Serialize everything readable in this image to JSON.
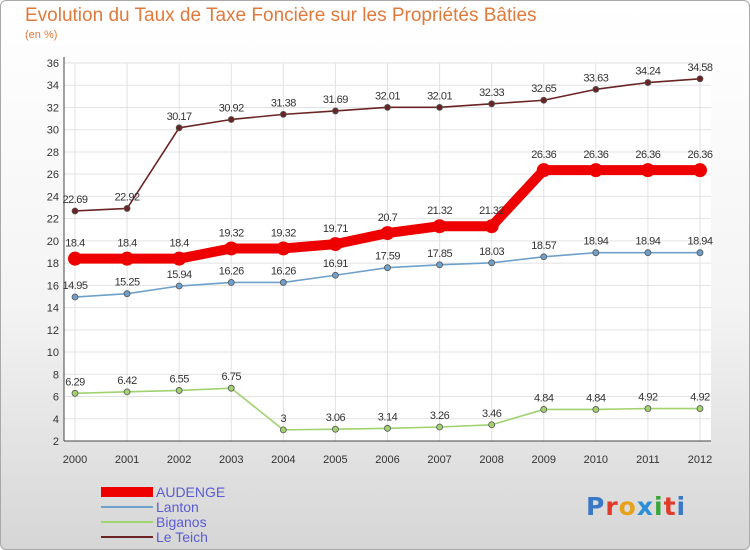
{
  "title": "Evolution du Taux de Taxe Foncière sur les Propriétés Bâties",
  "subtitle": "(en %)",
  "brand": {
    "text": "Proxiti",
    "colors": [
      "#3a78c8",
      "#e03b2a",
      "#e6a21a",
      "#2a8fd6",
      "#3aa63a",
      "#e03b2a",
      "#3a78c8"
    ]
  },
  "chart_data": {
    "type": "line",
    "x": [
      2000,
      2001,
      2002,
      2003,
      2004,
      2005,
      2006,
      2007,
      2008,
      2009,
      2010,
      2011,
      2012
    ],
    "ylim": [
      2,
      36
    ],
    "yticks": [
      2,
      4,
      6,
      8,
      10,
      12,
      14,
      16,
      18,
      20,
      22,
      24,
      26,
      28,
      30,
      32,
      34,
      36
    ],
    "grid": true,
    "legend_position": "bottom-left",
    "series": [
      {
        "name": "Le Teich",
        "color": "#6b2424",
        "values": [
          22.69,
          22.92,
          30.17,
          30.92,
          31.38,
          31.69,
          32.01,
          32.01,
          32.33,
          32.65,
          33.63,
          34.24,
          34.58
        ],
        "labels": [
          "22.69",
          "22.92",
          "30.17",
          "30.92",
          "31.38",
          "31.69",
          "32.01",
          "32.01",
          "32.33",
          "32.65",
          "33.63",
          "34.24",
          "34.58"
        ]
      },
      {
        "name": "AUDENGE",
        "color": "#ee0000",
        "values": [
          18.4,
          18.4,
          18.4,
          19.32,
          19.32,
          19.71,
          20.7,
          21.32,
          21.32,
          26.36,
          26.36,
          26.36,
          26.36
        ],
        "labels": [
          "18.4",
          "18.4",
          "18.4",
          "19.32",
          "19.32",
          "19.71",
          "20.7",
          "21.32",
          "21.32",
          "26.36",
          "26.36",
          "26.36",
          "26.36"
        ]
      },
      {
        "name": "Lanton",
        "color": "#6fa0cc",
        "values": [
          14.95,
          15.25,
          15.94,
          16.26,
          16.26,
          16.91,
          17.59,
          17.85,
          18.03,
          18.57,
          18.94,
          18.94,
          18.94
        ],
        "labels": [
          "14.95",
          "15.25",
          "15.94",
          "16.26",
          "16.26",
          "16.91",
          "17.59",
          "17.85",
          "18.03",
          "18.57",
          "18.94",
          "18.94",
          "18.94"
        ]
      },
      {
        "name": "Biganos",
        "color": "#a0d26e",
        "values": [
          6.29,
          6.42,
          6.55,
          6.75,
          3,
          3.06,
          3.14,
          3.26,
          3.46,
          4.84,
          4.84,
          4.92,
          4.92
        ],
        "labels": [
          "6.29",
          "6.42",
          "6.55",
          "6.75",
          "3",
          "3.06",
          "3.14",
          "3.26",
          "3.46",
          "4.84",
          "4.84",
          "4.92",
          "4.92"
        ]
      }
    ]
  },
  "legend": [
    {
      "name": "AUDENGE",
      "color": "#ee0000"
    },
    {
      "name": "Lanton",
      "color": "#6fa0cc"
    },
    {
      "name": "Biganos",
      "color": "#a0d26e"
    },
    {
      "name": "Le Teich",
      "color": "#6b2424"
    }
  ]
}
